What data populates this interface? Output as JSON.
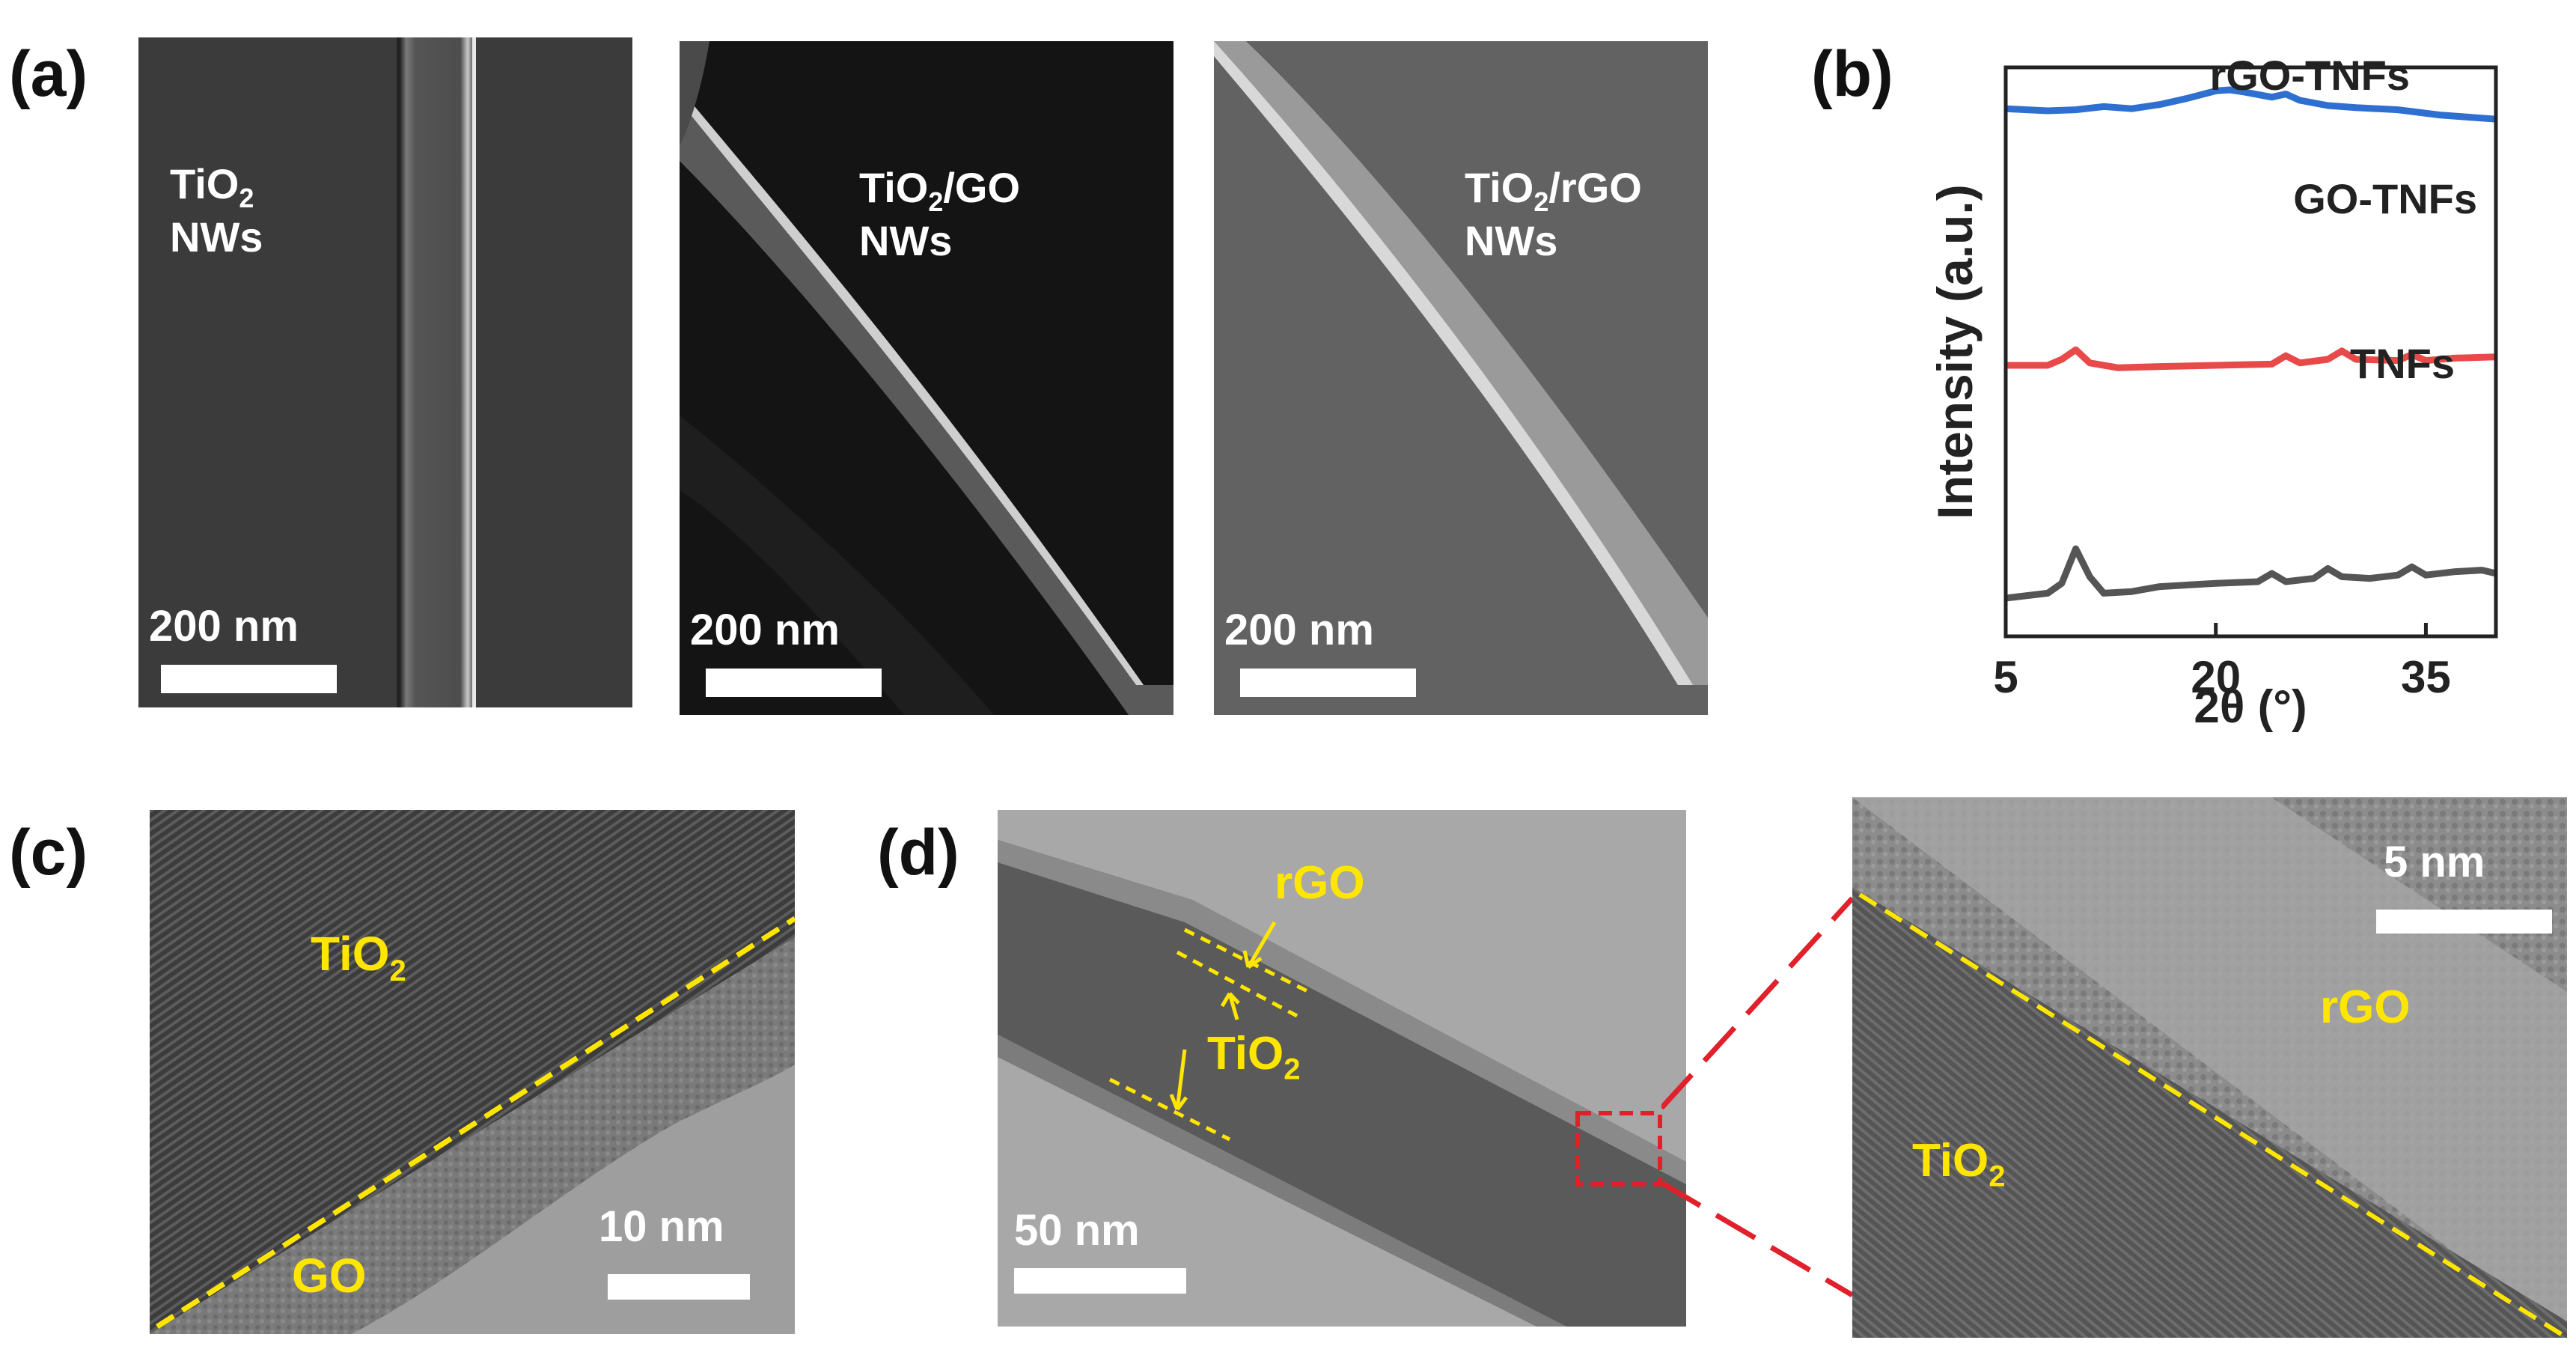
{
  "panels": {
    "a": {
      "label": "(a)",
      "images": [
        {
          "line1": "TiO",
          "sub": "2",
          "line2": "NWs",
          "scale": "200 nm"
        },
        {
          "line1": "TiO",
          "sub": "2",
          "line1b": "/GO",
          "line2": "NWs",
          "scale": "200 nm"
        },
        {
          "line1": "TiO",
          "sub": "2",
          "line1b": "/rGO",
          "line2": "NWs",
          "scale": "200 nm"
        }
      ]
    },
    "b": {
      "label": "(b)"
    },
    "c": {
      "label": "(c)",
      "tio2": "TiO",
      "tio2_sub": "2",
      "go": "GO",
      "scale": "10 nm"
    },
    "d": {
      "label": "(d)",
      "rgo": "rGO",
      "tio2": "TiO",
      "tio2_sub": "2",
      "scale": "50 nm",
      "zoom_scale": "5 nm",
      "zoom_rgo": "rGO",
      "zoom_tio2": "TiO",
      "zoom_tio2_sub": "2"
    }
  },
  "chart_data": {
    "type": "line",
    "xlabel": "2θ (°)",
    "ylabel": "Intensity (a.u.)",
    "xlim": [
      5,
      40
    ],
    "xticks": [
      "5",
      "20",
      "35"
    ],
    "series": [
      {
        "name": "rGO-TNFs",
        "color": "#2e6fd0",
        "x": [
          5,
          8,
          10,
          12,
          14,
          16,
          18,
          20,
          21,
          22,
          24,
          25,
          26,
          28,
          30,
          33,
          36,
          40
        ],
        "y": [
          0.82,
          0.8,
          0.81,
          0.84,
          0.82,
          0.86,
          0.92,
          0.99,
          1.0,
          0.98,
          0.93,
          0.96,
          0.9,
          0.85,
          0.83,
          0.81,
          0.76,
          0.72
        ]
      },
      {
        "name": "GO-TNFs",
        "color": "#e84a4a",
        "x": [
          5,
          8,
          9,
          10,
          11,
          13,
          16,
          20,
          24,
          25,
          26,
          28,
          29,
          30,
          33,
          34,
          35,
          37,
          40
        ],
        "y": [
          0.45,
          0.45,
          0.5,
          0.58,
          0.47,
          0.43,
          0.44,
          0.45,
          0.46,
          0.53,
          0.47,
          0.5,
          0.57,
          0.5,
          0.49,
          0.54,
          0.49,
          0.51,
          0.52
        ]
      },
      {
        "name": "TNFs",
        "color": "#555555",
        "x": [
          5,
          8,
          9,
          10,
          11,
          12,
          14,
          16,
          20,
          23,
          24,
          25,
          27,
          28,
          29,
          31,
          33,
          34,
          35,
          37,
          39,
          40
        ],
        "y": [
          0.05,
          0.08,
          0.14,
          0.35,
          0.18,
          0.08,
          0.09,
          0.12,
          0.14,
          0.15,
          0.2,
          0.15,
          0.17,
          0.23,
          0.18,
          0.17,
          0.19,
          0.24,
          0.19,
          0.21,
          0.22,
          0.2
        ]
      }
    ]
  }
}
